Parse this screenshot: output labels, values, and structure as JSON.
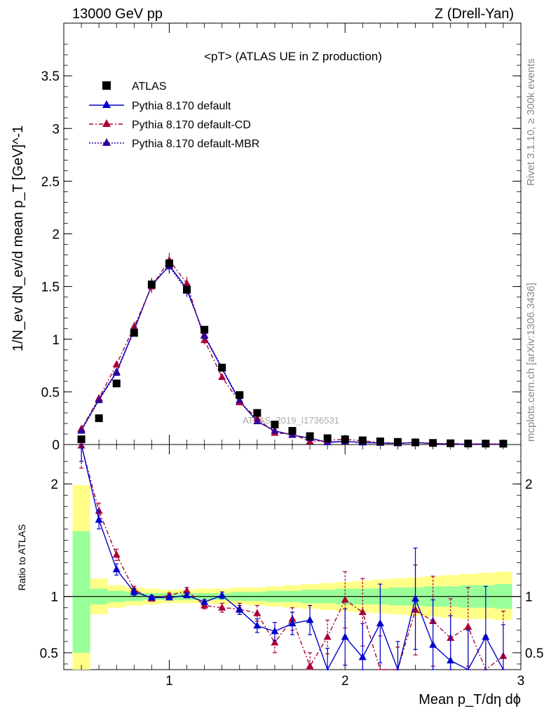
{
  "header": {
    "energy_label": "13000 GeV pp",
    "process_label": "Z (Drell-Yan)",
    "plot_title": "<pT> (ATLAS UE in Z production)",
    "rivet_label": "Rivet 3.1.10, ≥ 300k events",
    "mcplots_label": "mcplots.cern.ch [arXiv:1306.3436]",
    "watermark": "ATLAS_2019_I1736531"
  },
  "axes": {
    "ylabel_main": "1/N_ev dN_ev/d mean p_T [GeV]^-1",
    "ylabel_ratio": "Ratio to ATLAS",
    "xlabel": "Mean p_T/dη dϕ",
    "main_yticks": [
      "0",
      "0.5",
      "1",
      "1.5",
      "2",
      "2.5",
      "3",
      "3.5"
    ],
    "ratio_yticks": [
      "0.5",
      "1",
      "2"
    ],
    "xticks": [
      "1",
      "2",
      "3"
    ]
  },
  "legend": {
    "atlas": "ATLAS",
    "default": "Pythia 8.170 default",
    "cd": "Pythia 8.170 default-CD",
    "mbr": "Pythia 8.170 default-MBR"
  },
  "colors": {
    "data": "#000000",
    "default": "#0000cc",
    "cd": "#aa0033",
    "mbr": "#330099",
    "band_inner": "#99ff99",
    "band_outer": "#ffff88"
  },
  "chart_data": {
    "type": "scatter",
    "xlim": [
      0.4,
      3.0
    ],
    "ylim": [
      0,
      4.0
    ],
    "ratio_ylim": [
      0.35,
      2.35
    ],
    "x": [
      0.5,
      0.6,
      0.7,
      0.8,
      0.9,
      1.0,
      1.1,
      1.2,
      1.3,
      1.4,
      1.5,
      1.6,
      1.7,
      1.8,
      1.9,
      2.0,
      2.1,
      2.2,
      2.3,
      2.4,
      2.5,
      2.6,
      2.7,
      2.8,
      2.9
    ],
    "series": [
      {
        "name": "ATLAS",
        "values": [
          0.05,
          0.25,
          0.58,
          1.06,
          1.52,
          1.72,
          1.47,
          1.09,
          0.73,
          0.47,
          0.3,
          0.19,
          0.13,
          0.08,
          0.06,
          0.05,
          0.04,
          0.03,
          0.025,
          0.02,
          0.015,
          0.012,
          0.01,
          0.009,
          0.008
        ]
      },
      {
        "name": "Pythia 8.170 default",
        "values": [
          0.14,
          0.43,
          0.69,
          1.09,
          1.51,
          1.7,
          1.48,
          1.03,
          0.72,
          0.41,
          0.22,
          0.13,
          0.09,
          0.06,
          0.02,
          0.03,
          0.018,
          0.015,
          0.01,
          0.02,
          0.008,
          0.004,
          0.003,
          0.006,
          0.002
        ]
      },
      {
        "name": "Pythia 8.170 default-CD",
        "values": [
          0.15,
          0.44,
          0.76,
          1.12,
          1.5,
          1.75,
          1.53,
          0.99,
          0.64,
          0.4,
          0.25,
          0.11,
          0.1,
          0.03,
          0.04,
          0.05,
          0.035,
          0.02,
          0.012,
          0.018,
          0.012,
          0.008,
          0.007,
          0.005,
          0.004
        ]
      },
      {
        "name": "Pythia 8.170 default-MBR",
        "values": [
          0.13,
          0.42,
          0.68,
          1.08,
          1.52,
          1.69,
          1.46,
          1.04,
          0.73,
          0.42,
          0.22,
          0.13,
          0.09,
          0.06,
          0.025,
          0.03,
          0.02,
          0.016,
          0.011,
          0.02,
          0.009,
          0.005,
          0.004,
          0.006,
          0.003
        ]
      }
    ],
    "ratio": {
      "default": [
        2.45,
        1.68,
        1.24,
        1.04,
        0.99,
        0.99,
        1.01,
        0.95,
        1.01,
        0.88,
        0.74,
        0.69,
        0.76,
        0.79,
        0.34,
        0.64,
        0.46,
        0.76,
        0.2,
        0.98,
        0.57,
        0.43,
        0.3,
        0.64,
        0.3
      ],
      "default_err": [
        0.25,
        0.08,
        0.05,
        0.03,
        0.02,
        0.02,
        0.02,
        0.02,
        0.03,
        0.04,
        0.06,
        0.08,
        0.1,
        0.13,
        0.2,
        0.25,
        0.3,
        0.35,
        0.4,
        0.45,
        0.4,
        0.4,
        0.4,
        0.45,
        0.45
      ],
      "cd": [
        2.34,
        1.76,
        1.37,
        1.06,
        0.98,
        1.01,
        1.05,
        0.92,
        0.9,
        0.89,
        0.85,
        0.59,
        0.8,
        0.38,
        0.64,
        0.97,
        0.86,
        0.3,
        0.2,
        0.88,
        0.78,
        0.63,
        0.73,
        0.25,
        0.47
      ],
      "cd_err": [
        0.2,
        0.07,
        0.05,
        0.03,
        0.02,
        0.02,
        0.03,
        0.03,
        0.04,
        0.05,
        0.07,
        0.09,
        0.1,
        0.12,
        0.15,
        0.25,
        0.3,
        0.35,
        0.35,
        0.4,
        0.4,
        0.35,
        0.35,
        0.4,
        0.4
      ],
      "band_inner_lo": [
        0.5,
        0.93,
        0.95,
        0.96,
        0.97,
        0.97,
        0.97,
        0.97,
        0.97,
        0.96,
        0.96,
        0.95,
        0.95,
        0.94,
        0.94,
        0.93,
        0.93,
        0.93,
        0.92,
        0.92,
        0.91,
        0.91,
        0.9,
        0.9,
        0.89
      ],
      "band_inner_hi": [
        1.58,
        1.07,
        1.05,
        1.04,
        1.03,
        1.03,
        1.03,
        1.03,
        1.03,
        1.04,
        1.04,
        1.05,
        1.05,
        1.06,
        1.06,
        1.07,
        1.07,
        1.07,
        1.08,
        1.08,
        1.09,
        1.09,
        1.1,
        1.1,
        1.11
      ],
      "band_outer_lo": [
        0.35,
        0.84,
        0.9,
        0.92,
        0.93,
        0.94,
        0.94,
        0.94,
        0.93,
        0.93,
        0.92,
        0.91,
        0.9,
        0.89,
        0.88,
        0.87,
        0.86,
        0.85,
        0.84,
        0.83,
        0.82,
        0.81,
        0.8,
        0.8,
        0.79
      ],
      "band_outer_hi": [
        1.99,
        1.16,
        1.1,
        1.08,
        1.07,
        1.06,
        1.06,
        1.07,
        1.07,
        1.08,
        1.08,
        1.09,
        1.1,
        1.11,
        1.12,
        1.13,
        1.14,
        1.15,
        1.16,
        1.17,
        1.18,
        1.19,
        1.2,
        1.21,
        1.22
      ]
    }
  }
}
